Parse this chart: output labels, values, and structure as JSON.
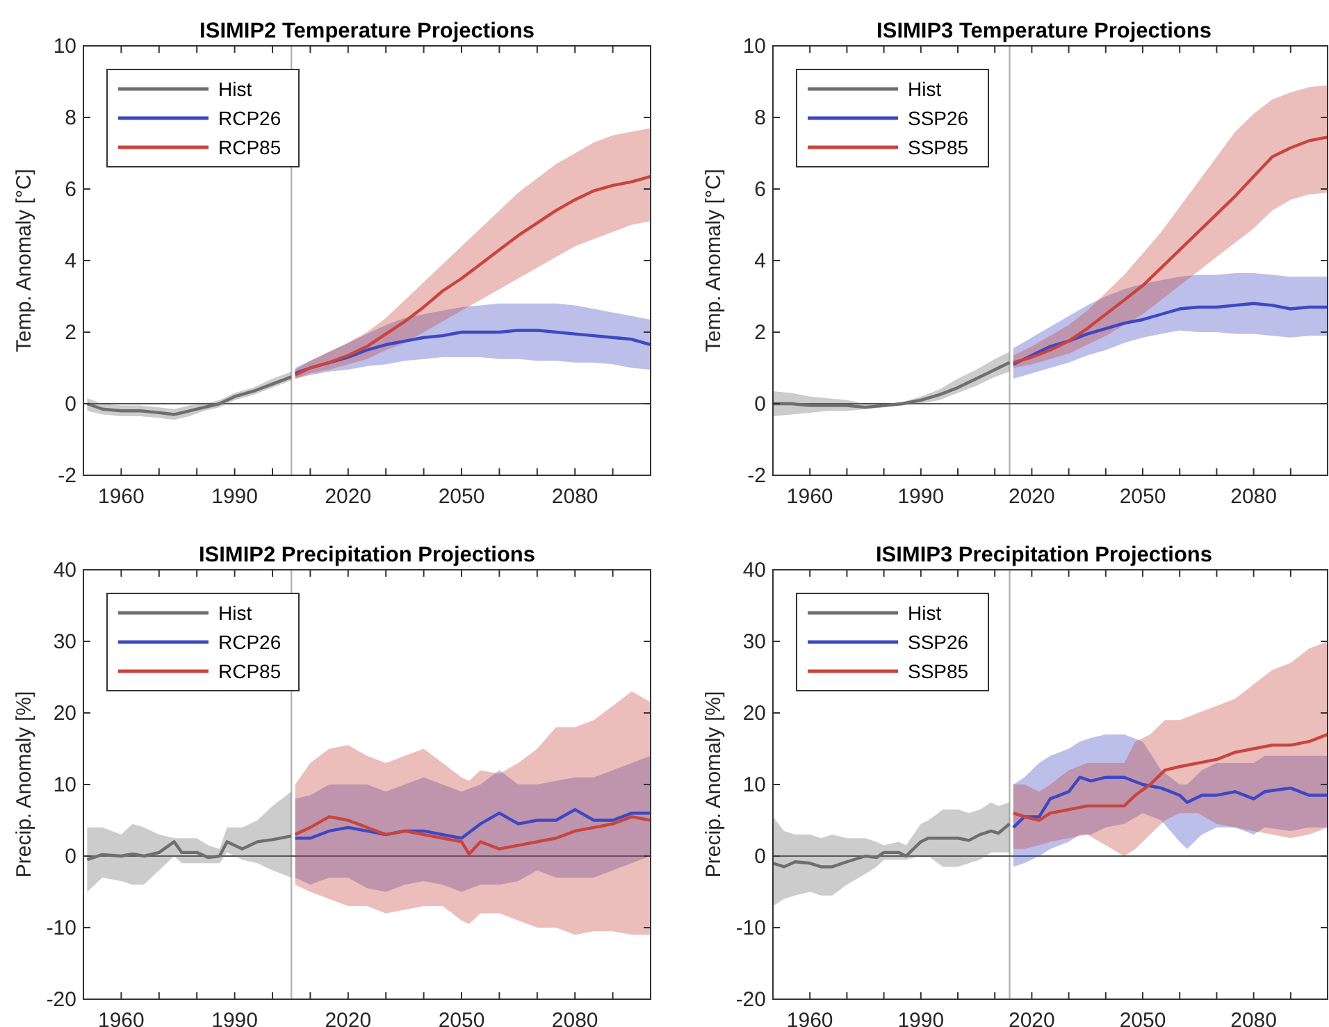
{
  "chart_data": [
    {
      "type": "line",
      "title": "ISIMIP2 Temperature Projections",
      "ylabel": "Temp. Anomaly [°C]",
      "xlim": [
        1950,
        2100
      ],
      "ylim": [
        -2,
        10
      ],
      "xticks": [
        {
          "value": 1950,
          "label": null
        },
        1960,
        {
          "value": 1970,
          "label": null
        },
        {
          "value": 1980,
          "label": null
        },
        1990,
        {
          "value": 2000,
          "label": null
        },
        {
          "value": 2010,
          "label": null
        },
        2020,
        {
          "value": 2030,
          "label": null
        },
        {
          "value": 2040,
          "label": null
        },
        2050,
        {
          "value": 2060,
          "label": null
        },
        {
          "value": 2070,
          "label": null
        },
        2080,
        {
          "value": 2090,
          "label": null
        },
        {
          "value": 2100,
          "label": null
        }
      ],
      "yticks": [
        -2,
        0,
        2,
        4,
        6,
        8,
        10
      ],
      "grid": false,
      "legend": "top left",
      "ref_lines": [
        {
          "axis": "x",
          "value": 2005,
          "color": "#b4b4b4"
        },
        {
          "axis": "y",
          "value": 0,
          "color": "#505050"
        }
      ],
      "series": [
        {
          "name": "Hist",
          "color": "#6e6e6e",
          "x": [
            1951,
            1955,
            1960,
            1965,
            1970,
            1974,
            1978,
            1982,
            1986,
            1990,
            1995,
            2000,
            2005
          ],
          "values": [
            0,
            -0.15,
            -0.2,
            -0.2,
            -0.25,
            -0.3,
            -0.2,
            -0.1,
            0,
            0.2,
            0.35,
            0.55,
            0.75
          ],
          "lower": [
            -0.2,
            -0.3,
            -0.35,
            -0.35,
            -0.4,
            -0.45,
            -0.35,
            -0.2,
            -0.1,
            0.1,
            0.25,
            0.45,
            0.65
          ],
          "upper": [
            0.15,
            0,
            -0.05,
            -0.05,
            -0.1,
            -0.15,
            -0.05,
            0,
            0.1,
            0.3,
            0.45,
            0.7,
            0.9
          ]
        },
        {
          "name": "RCP26",
          "color": "#3d48c2",
          "x": [
            2006,
            2010,
            2015,
            2020,
            2025,
            2030,
            2035,
            2040,
            2045,
            2050,
            2055,
            2060,
            2065,
            2070,
            2075,
            2080,
            2085,
            2090,
            2095,
            2100
          ],
          "values": [
            0.85,
            1.0,
            1.15,
            1.3,
            1.5,
            1.65,
            1.75,
            1.85,
            1.9,
            2.0,
            2.0,
            2.0,
            2.05,
            2.05,
            2.0,
            1.95,
            1.9,
            1.85,
            1.8,
            1.65
          ],
          "lower": [
            0.7,
            0.8,
            0.9,
            0.95,
            1.05,
            1.1,
            1.2,
            1.25,
            1.3,
            1.3,
            1.3,
            1.25,
            1.25,
            1.2,
            1.2,
            1.15,
            1.15,
            1.1,
            1.0,
            0.95
          ],
          "upper": [
            1.0,
            1.2,
            1.45,
            1.7,
            1.95,
            2.2,
            2.4,
            2.5,
            2.6,
            2.7,
            2.75,
            2.8,
            2.8,
            2.8,
            2.8,
            2.75,
            2.65,
            2.55,
            2.45,
            2.35
          ]
        },
        {
          "name": "RCP85",
          "color": "#c8453d",
          "x": [
            2006,
            2010,
            2015,
            2020,
            2025,
            2030,
            2035,
            2040,
            2045,
            2050,
            2055,
            2060,
            2065,
            2070,
            2075,
            2080,
            2085,
            2090,
            2095,
            2100
          ],
          "values": [
            0.8,
            1.0,
            1.15,
            1.35,
            1.6,
            1.95,
            2.3,
            2.7,
            3.15,
            3.5,
            3.9,
            4.3,
            4.7,
            5.05,
            5.4,
            5.7,
            5.95,
            6.1,
            6.2,
            6.35
          ],
          "lower": [
            0.7,
            0.85,
            0.95,
            1.1,
            1.25,
            1.5,
            1.7,
            2.0,
            2.3,
            2.6,
            2.9,
            3.2,
            3.5,
            3.8,
            4.1,
            4.4,
            4.6,
            4.8,
            5.0,
            5.1
          ],
          "upper": [
            0.95,
            1.2,
            1.45,
            1.7,
            2.0,
            2.4,
            2.9,
            3.4,
            3.9,
            4.4,
            4.9,
            5.4,
            5.9,
            6.3,
            6.7,
            7.0,
            7.3,
            7.5,
            7.6,
            7.7
          ]
        }
      ]
    },
    {
      "type": "line",
      "title": "ISIMIP3 Temperature Projections",
      "ylabel": "Temp. Anomaly [°C]",
      "xlim": [
        1950,
        2100
      ],
      "ylim": [
        -2,
        10
      ],
      "xticks": [
        {
          "value": 1950,
          "label": null
        },
        1960,
        {
          "value": 1970,
          "label": null
        },
        {
          "value": 1980,
          "label": null
        },
        1990,
        {
          "value": 2000,
          "label": null
        },
        {
          "value": 2010,
          "label": null
        },
        2020,
        {
          "value": 2030,
          "label": null
        },
        {
          "value": 2040,
          "label": null
        },
        2050,
        {
          "value": 2060,
          "label": null
        },
        {
          "value": 2070,
          "label": null
        },
        2080,
        {
          "value": 2090,
          "label": null
        },
        {
          "value": 2100,
          "label": null
        }
      ],
      "yticks": [
        -2,
        0,
        2,
        4,
        6,
        8,
        10
      ],
      "grid": false,
      "legend": "top left",
      "ref_lines": [
        {
          "axis": "x",
          "value": 2014,
          "color": "#b4b4b4"
        },
        {
          "axis": "y",
          "value": 0,
          "color": "#505050"
        }
      ],
      "series": [
        {
          "name": "Hist",
          "color": "#6e6e6e",
          "x": [
            1950,
            1955,
            1960,
            1965,
            1970,
            1975,
            1980,
            1985,
            1990,
            1995,
            2000,
            2005,
            2010,
            2014
          ],
          "values": [
            0,
            0,
            -0.05,
            -0.05,
            -0.05,
            -0.1,
            -0.05,
            0,
            0.1,
            0.25,
            0.45,
            0.7,
            0.95,
            1.15
          ],
          "lower": [
            -0.35,
            -0.3,
            -0.25,
            -0.2,
            -0.2,
            -0.15,
            -0.1,
            -0.05,
            0,
            0.1,
            0.3,
            0.5,
            0.75,
            0.9
          ],
          "upper": [
            0.35,
            0.3,
            0.2,
            0.15,
            0.1,
            0,
            0,
            0.05,
            0.2,
            0.4,
            0.7,
            0.95,
            1.25,
            1.45
          ]
        },
        {
          "name": "SSP26",
          "color": "#3d48c2",
          "x": [
            2015,
            2020,
            2025,
            2030,
            2035,
            2040,
            2045,
            2050,
            2055,
            2060,
            2065,
            2070,
            2075,
            2080,
            2085,
            2090,
            2095,
            2100
          ],
          "values": [
            1.1,
            1.35,
            1.6,
            1.75,
            1.95,
            2.1,
            2.25,
            2.35,
            2.5,
            2.65,
            2.7,
            2.7,
            2.75,
            2.8,
            2.75,
            2.65,
            2.7,
            2.7
          ],
          "lower": [
            0.7,
            0.85,
            1.0,
            1.15,
            1.35,
            1.5,
            1.7,
            1.85,
            1.95,
            2.05,
            2.0,
            2.0,
            1.95,
            1.95,
            1.9,
            1.85,
            1.9,
            1.9
          ],
          "upper": [
            1.55,
            1.85,
            2.15,
            2.45,
            2.75,
            3.0,
            3.2,
            3.35,
            3.45,
            3.55,
            3.6,
            3.6,
            3.65,
            3.65,
            3.6,
            3.55,
            3.55,
            3.55
          ]
        },
        {
          "name": "SSP85",
          "color": "#c8453d",
          "x": [
            2015,
            2020,
            2025,
            2030,
            2035,
            2040,
            2045,
            2050,
            2055,
            2060,
            2065,
            2070,
            2075,
            2080,
            2085,
            2090,
            2095,
            2100
          ],
          "values": [
            1.15,
            1.3,
            1.5,
            1.75,
            2.1,
            2.5,
            2.9,
            3.3,
            3.8,
            4.3,
            4.8,
            5.3,
            5.8,
            6.35,
            6.9,
            7.15,
            7.35,
            7.45
          ],
          "lower": [
            1.0,
            1.1,
            1.25,
            1.4,
            1.65,
            1.9,
            2.2,
            2.5,
            2.9,
            3.3,
            3.7,
            4.1,
            4.5,
            4.9,
            5.4,
            5.7,
            5.85,
            5.9
          ],
          "upper": [
            1.35,
            1.6,
            1.9,
            2.2,
            2.6,
            3.1,
            3.6,
            4.2,
            4.8,
            5.5,
            6.2,
            6.9,
            7.6,
            8.1,
            8.5,
            8.7,
            8.85,
            8.9
          ]
        }
      ]
    },
    {
      "type": "line",
      "title": "ISIMIP2 Precipitation Projections",
      "ylabel": "Precip. Anomaly [%]",
      "xlim": [
        1950,
        2100
      ],
      "ylim": [
        -20,
        40
      ],
      "xticks": [
        {
          "value": 1950,
          "label": null
        },
        1960,
        {
          "value": 1970,
          "label": null
        },
        {
          "value": 1980,
          "label": null
        },
        1990,
        {
          "value": 2000,
          "label": null
        },
        {
          "value": 2010,
          "label": null
        },
        2020,
        {
          "value": 2030,
          "label": null
        },
        {
          "value": 2040,
          "label": null
        },
        2050,
        {
          "value": 2060,
          "label": null
        },
        {
          "value": 2070,
          "label": null
        },
        2080,
        {
          "value": 2090,
          "label": null
        },
        {
          "value": 2100,
          "label": null
        }
      ],
      "yticks": [
        -20,
        -10,
        0,
        10,
        20,
        30,
        40
      ],
      "grid": false,
      "legend": "top left",
      "ref_lines": [
        {
          "axis": "x",
          "value": 2005,
          "color": "#b4b4b4"
        },
        {
          "axis": "y",
          "value": 0,
          "color": "#505050"
        }
      ],
      "series": [
        {
          "name": "Hist",
          "color": "#6e6e6e",
          "x": [
            1951,
            1955,
            1960,
            1963,
            1966,
            1970,
            1974,
            1976,
            1980,
            1983,
            1986,
            1988,
            1992,
            1996,
            2000,
            2005
          ],
          "values": [
            -0.5,
            0.2,
            0,
            0.3,
            0,
            0.5,
            2,
            0.5,
            0.5,
            -0.2,
            0,
            2,
            1,
            2,
            2.3,
            2.8
          ],
          "lower": [
            -5,
            -3,
            -3.5,
            -4,
            -4,
            -2,
            0,
            -1,
            -1,
            -1,
            -1,
            0.5,
            -0.5,
            -1,
            -2,
            -3
          ],
          "upper": [
            4,
            4,
            3,
            4.5,
            4,
            3,
            2.5,
            2.5,
            2.5,
            1.5,
            1,
            4,
            4,
            5,
            7,
            9
          ]
        },
        {
          "name": "RCP26",
          "color": "#3d48c2",
          "x": [
            2006,
            2010,
            2015,
            2020,
            2025,
            2030,
            2035,
            2040,
            2045,
            2050,
            2055,
            2060,
            2065,
            2070,
            2075,
            2080,
            2085,
            2090,
            2095,
            2100
          ],
          "values": [
            2.5,
            2.5,
            3.5,
            4,
            3.5,
            3,
            3.5,
            3.5,
            3,
            2.5,
            4.5,
            6,
            4.5,
            5,
            5,
            6.5,
            5,
            5,
            6,
            6
          ],
          "lower": [
            -3,
            -4,
            -3,
            -3,
            -4.5,
            -5,
            -4,
            -3.5,
            -4,
            -5,
            -4,
            -4,
            -3.5,
            -2,
            -3,
            -3,
            -3,
            -2,
            -1,
            0
          ],
          "upper": [
            8,
            8.5,
            10,
            10,
            10,
            9,
            10,
            11,
            10,
            9,
            10,
            12,
            10,
            10,
            10.5,
            11,
            11,
            12,
            13,
            14
          ]
        },
        {
          "name": "RCP85",
          "color": "#c8453d",
          "x": [
            2006,
            2010,
            2015,
            2020,
            2025,
            2030,
            2035,
            2040,
            2045,
            2050,
            2052,
            2055,
            2060,
            2065,
            2070,
            2075,
            2080,
            2085,
            2090,
            2095,
            2100
          ],
          "values": [
            3,
            4,
            5.5,
            5,
            4,
            3,
            3.5,
            3,
            2.5,
            2,
            0.3,
            2,
            1,
            1.5,
            2,
            2.5,
            3.5,
            4,
            4.5,
            5.5,
            5
          ],
          "lower": [
            -4,
            -5,
            -6,
            -7,
            -7,
            -8,
            -7.5,
            -7,
            -7,
            -9,
            -9.5,
            -8,
            -8,
            -9,
            -10,
            -10,
            -11,
            -10.5,
            -10.5,
            -11,
            -11
          ],
          "upper": [
            10,
            13,
            15,
            15.5,
            14,
            13,
            14,
            15,
            13,
            11,
            10.5,
            12,
            11.5,
            13,
            15,
            18,
            18,
            19,
            21,
            23,
            21.5
          ]
        }
      ]
    },
    {
      "type": "line",
      "title": "ISIMIP3 Precipitation Projections",
      "ylabel": "Precip. Anomaly [%]",
      "xlim": [
        1950,
        2100
      ],
      "ylim": [
        -20,
        40
      ],
      "xticks": [
        {
          "value": 1950,
          "label": null
        },
        1960,
        {
          "value": 1970,
          "label": null
        },
        {
          "value": 1980,
          "label": null
        },
        1990,
        {
          "value": 2000,
          "label": null
        },
        {
          "value": 2010,
          "label": null
        },
        2020,
        {
          "value": 2030,
          "label": null
        },
        {
          "value": 2040,
          "label": null
        },
        2050,
        {
          "value": 2060,
          "label": null
        },
        {
          "value": 2070,
          "label": null
        },
        2080,
        {
          "value": 2090,
          "label": null
        },
        {
          "value": 2100,
          "label": null
        }
      ],
      "yticks": [
        -20,
        -10,
        0,
        10,
        20,
        30,
        40
      ],
      "grid": false,
      "legend": "top left",
      "ref_lines": [
        {
          "axis": "x",
          "value": 2014,
          "color": "#b4b4b4"
        },
        {
          "axis": "y",
          "value": 0,
          "color": "#505050"
        }
      ],
      "series": [
        {
          "name": "Hist",
          "color": "#6e6e6e",
          "x": [
            1950,
            1953,
            1956,
            1960,
            1963,
            1966,
            1970,
            1975,
            1978,
            1980,
            1984,
            1986,
            1990,
            1992,
            1996,
            2000,
            2003,
            2006,
            2009,
            2011,
            2014
          ],
          "values": [
            -1,
            -1.5,
            -0.8,
            -1,
            -1.5,
            -1.5,
            -0.8,
            0,
            -0.2,
            0.5,
            0.5,
            0,
            2,
            2.5,
            2.5,
            2.5,
            2.2,
            3,
            3.5,
            3.2,
            4.5
          ],
          "lower": [
            -7,
            -6,
            -5.5,
            -5,
            -5.5,
            -5.5,
            -4,
            -2.5,
            -1.5,
            -0.5,
            -0.5,
            -0.5,
            0,
            0,
            -1.5,
            -1.5,
            -1,
            -0.5,
            0.5,
            0.5,
            0.5
          ],
          "upper": [
            5.5,
            3.5,
            3,
            3,
            2.5,
            3,
            2.5,
            2.5,
            2,
            1.5,
            2,
            1.5,
            4.5,
            5,
            6.5,
            6.5,
            6,
            6.5,
            7.5,
            7,
            7.5
          ]
        },
        {
          "name": "SSP26",
          "color": "#3d48c2",
          "x": [
            2015,
            2018,
            2022,
            2025,
            2030,
            2033,
            2036,
            2040,
            2045,
            2050,
            2055,
            2060,
            2062,
            2066,
            2070,
            2075,
            2080,
            2083,
            2090,
            2095,
            2100
          ],
          "values": [
            4,
            5.5,
            5.5,
            8,
            9,
            11,
            10.5,
            11,
            11,
            10,
            9.5,
            8.5,
            7.5,
            8.5,
            8.5,
            9,
            8,
            9,
            9.5,
            8.5,
            8.5
          ],
          "lower": [
            -1.5,
            -1,
            0,
            1,
            2,
            3,
            3,
            4,
            4.5,
            6,
            5,
            2,
            1,
            3,
            4,
            4,
            3,
            4,
            3.5,
            4,
            4
          ],
          "upper": [
            10,
            11,
            13,
            14,
            15,
            16,
            16.5,
            17,
            17,
            16,
            12,
            10,
            10,
            12,
            13,
            13,
            13,
            14,
            14,
            14,
            14
          ]
        },
        {
          "name": "SSP85",
          "color": "#c8453d",
          "x": [
            2015,
            2018,
            2022,
            2025,
            2030,
            2035,
            2040,
            2045,
            2048,
            2052,
            2056,
            2060,
            2065,
            2070,
            2075,
            2080,
            2085,
            2090,
            2095,
            2100
          ],
          "values": [
            6,
            5.5,
            5,
            6,
            6.5,
            7,
            7,
            7,
            8.5,
            10,
            12,
            12.5,
            13,
            13.5,
            14.5,
            15,
            15.5,
            15.5,
            16,
            17
          ],
          "lower": [
            1,
            1,
            1.5,
            2,
            2.5,
            3,
            1.5,
            0,
            1,
            3,
            5,
            6,
            6,
            4.5,
            4,
            3.5,
            3,
            2.5,
            3,
            4
          ],
          "upper": [
            10,
            10,
            9,
            10,
            12,
            13,
            13,
            13,
            16,
            17,
            19,
            19,
            20,
            21,
            22,
            24,
            26,
            27,
            29,
            30
          ]
        }
      ]
    }
  ]
}
